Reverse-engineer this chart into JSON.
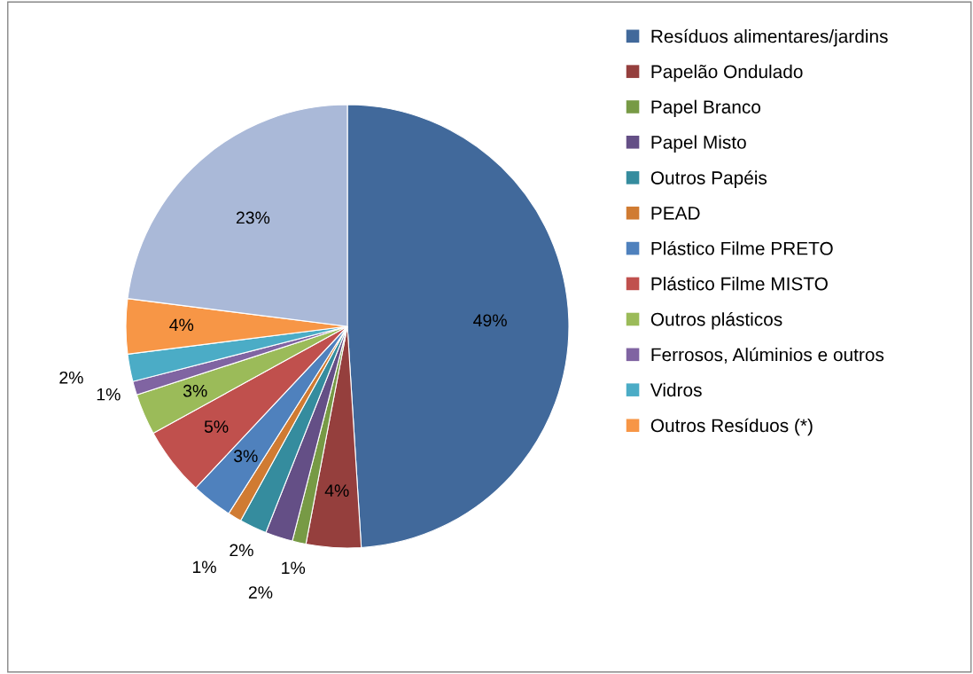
{
  "chart_data": {
    "type": "pie",
    "categories": [
      "Resíduos alimentares/jardins",
      "Papelão Ondulado",
      "Papel Branco",
      "Papel Misto",
      "Outros Papéis",
      "PEAD",
      "Plástico Filme PRETO",
      "Plástico Filme MISTO",
      "Outros plásticos",
      "Ferrosos, Alúminios e outros",
      "Vidros",
      "Outros Resíduos (*)",
      null
    ],
    "values": [
      49,
      4,
      1,
      2,
      2,
      1,
      3,
      5,
      3,
      1,
      2,
      4,
      23
    ],
    "colors": [
      "#41699b",
      "#953f3d",
      "#779a45",
      "#644f86",
      "#358c9e",
      "#d07b32",
      "#4f81bd",
      "#c0504d",
      "#9bbb59",
      "#8064a2",
      "#4bacc6",
      "#f79646",
      "#aab9d8"
    ],
    "value_labels": [
      "49%",
      "4%",
      "1%",
      "2%",
      "2%",
      "1%",
      "3%",
      "5%",
      "3%",
      "1%",
      "2%",
      "4%",
      "23%"
    ],
    "legend": "right"
  }
}
